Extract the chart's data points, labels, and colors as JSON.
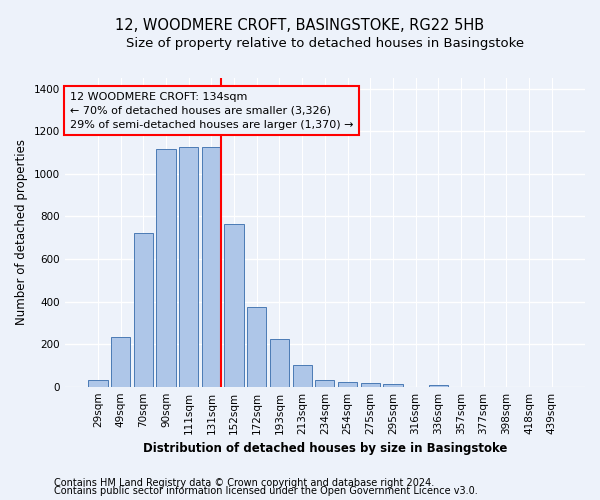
{
  "title": "12, WOODMERE CROFT, BASINGSTOKE, RG22 5HB",
  "subtitle": "Size of property relative to detached houses in Basingstoke",
  "xlabel": "Distribution of detached houses by size in Basingstoke",
  "ylabel": "Number of detached properties",
  "bar_labels": [
    "29sqm",
    "49sqm",
    "70sqm",
    "90sqm",
    "111sqm",
    "131sqm",
    "152sqm",
    "172sqm",
    "193sqm",
    "213sqm",
    "234sqm",
    "254sqm",
    "275sqm",
    "295sqm",
    "316sqm",
    "336sqm",
    "357sqm",
    "377sqm",
    "398sqm",
    "418sqm",
    "439sqm"
  ],
  "bar_values": [
    30,
    235,
    720,
    1115,
    1125,
    1125,
    765,
    375,
    225,
    100,
    30,
    20,
    18,
    12,
    0,
    10,
    0,
    0,
    0,
    0,
    0
  ],
  "bar_color": "#aec6e8",
  "bar_edge_color": "#4a7ab5",
  "ylim": [
    0,
    1450
  ],
  "yticks": [
    0,
    200,
    400,
    600,
    800,
    1000,
    1200,
    1400
  ],
  "annotation_title": "12 WOODMERE CROFT: 134sqm",
  "annotation_line1": "← 70% of detached houses are smaller (3,326)",
  "annotation_line2": "29% of semi-detached houses are larger (1,370) →",
  "footnote1": "Contains HM Land Registry data © Crown copyright and database right 2024.",
  "footnote2": "Contains public sector information licensed under the Open Government Licence v3.0.",
  "bg_color": "#edf2fa",
  "grid_color": "#ffffff",
  "title_fontsize": 10.5,
  "subtitle_fontsize": 9.5,
  "axis_label_fontsize": 8.5,
  "tick_fontsize": 7.5,
  "annotation_fontsize": 8,
  "footnote_fontsize": 7
}
